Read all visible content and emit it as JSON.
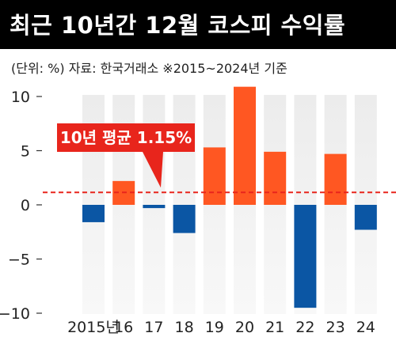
{
  "title": "최근 10년간 12월 코스피 수익률",
  "subtitle": "(단위: %)  자료: 한국거래소  ※2015~2024년 기준",
  "colors": {
    "positive": "#ff5722",
    "negative": "#0b56a4",
    "average": "#e8251c",
    "header_bg": "#000000",
    "column_bg": "#ececec"
  },
  "chart_data": {
    "type": "bar",
    "categories": [
      "2015년",
      "16",
      "17",
      "18",
      "19",
      "20",
      "21",
      "22",
      "23",
      "24"
    ],
    "values": [
      -1.6,
      2.2,
      -0.3,
      -2.6,
      5.3,
      10.9,
      4.9,
      -9.5,
      4.7,
      -2.3
    ],
    "ylim": [
      -10.5,
      11
    ],
    "yticks": [
      10,
      5,
      0,
      -5,
      -10
    ],
    "ytick_labels": [
      "10",
      "5",
      "0",
      "−5",
      "−10"
    ],
    "average": {
      "value": 1.15,
      "label": "10년 평균 1.15%"
    },
    "grid": false
  }
}
